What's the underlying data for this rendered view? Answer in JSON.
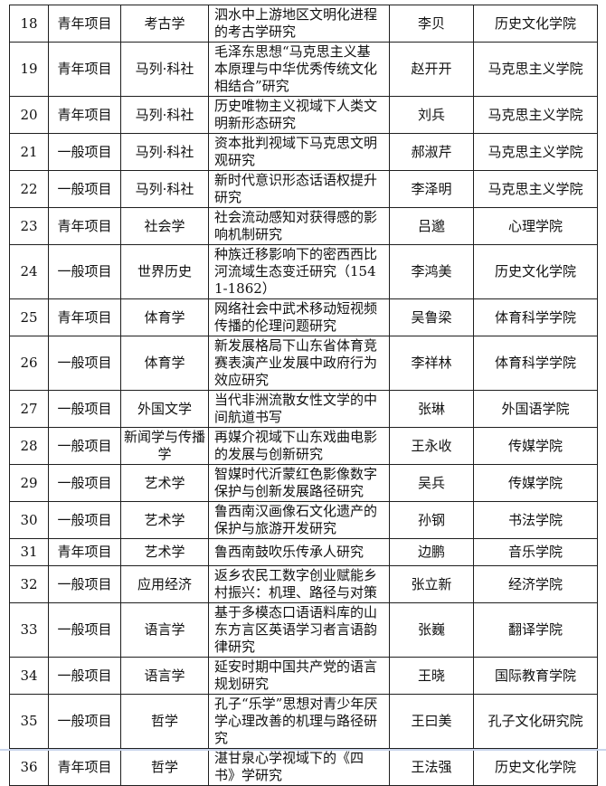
{
  "page": {
    "background_color": "#ffffff",
    "table_border_color": "#1f1f1f",
    "bottom_edge_color": "#c9d5ec"
  },
  "table": {
    "rows": [
      {
        "no": "18",
        "category": "青年项目",
        "discipline": "考古学",
        "title": "泗水中上游地区文明化进程的考古学研究",
        "leader": "李贝",
        "unit": "历史文化学院"
      },
      {
        "no": "19",
        "category": "青年项目",
        "discipline": "马列·科社",
        "title": "毛泽东思想“马克思主义基本原理与中华优秀传统文化相结合”研究",
        "leader": "赵开开",
        "unit": "马克思主义学院"
      },
      {
        "no": "20",
        "category": "青年项目",
        "discipline": "马列·科社",
        "title": "历史唯物主义视域下人类文明新形态研究",
        "leader": "刘兵",
        "unit": "马克思主义学院"
      },
      {
        "no": "21",
        "category": "一般项目",
        "discipline": "马列·科社",
        "title": "资本批判视域下马克思文明观研究",
        "leader": "郝淑芹",
        "unit": "马克思主义学院"
      },
      {
        "no": "22",
        "category": "一般项目",
        "discipline": "马列·科社",
        "title": "新时代意识形态话语权提升研究",
        "leader": "李泽明",
        "unit": "马克思主义学院"
      },
      {
        "no": "23",
        "category": "青年项目",
        "discipline": "社会学",
        "title": "社会流动感知对获得感的影响机制研究",
        "leader": "吕邈",
        "unit": "心理学院"
      },
      {
        "no": "24",
        "category": "一般项目",
        "discipline": "世界历史",
        "title": "种族迁移影响下的密西西比河流域生态变迁研究（1541-1862）",
        "leader": "李鸿美",
        "unit": "历史文化学院"
      },
      {
        "no": "25",
        "category": "青年项目",
        "discipline": "体育学",
        "title": "网络社会中武术移动短视频传播的伦理问题研究",
        "leader": "吴鲁梁",
        "unit": "体育科学学院"
      },
      {
        "no": "26",
        "category": "一般项目",
        "discipline": "体育学",
        "title": "新发展格局下山东省体育竞赛表演产业发展中政府行为效应研究",
        "leader": "李祥林",
        "unit": "体育科学学院"
      },
      {
        "no": "27",
        "category": "一般项目",
        "discipline": "外国文学",
        "title": "当代非洲流散女性文学的中间航道书写",
        "leader": "张琳",
        "unit": "外国语学院"
      },
      {
        "no": "28",
        "category": "一般项目",
        "discipline": "新闻学与传播学",
        "title": "再媒介视域下山东戏曲电影的发展与创新研究",
        "leader": "王永收",
        "unit": "传媒学院"
      },
      {
        "no": "29",
        "category": "一般项目",
        "discipline": "艺术学",
        "title": "智媒时代沂蒙红色影像数字保护与创新发展路径研究",
        "leader": "吴兵",
        "unit": "传媒学院"
      },
      {
        "no": "30",
        "category": "一般项目",
        "discipline": "艺术学",
        "title": "鲁西南汉画像石文化遗产的保护与旅游开发研究",
        "leader": "孙钢",
        "unit": "书法学院"
      },
      {
        "no": "31",
        "category": "青年项目",
        "discipline": "艺术学",
        "title": "鲁西南鼓吹乐传承人研究",
        "leader": "边鹏",
        "unit": "音乐学院"
      },
      {
        "no": "32",
        "category": "一般项目",
        "discipline": "应用经济",
        "title": "返乡农民工数字创业赋能乡村振兴：机理、路径与对策",
        "leader": "张立新",
        "unit": "经济学院"
      },
      {
        "no": "33",
        "category": "一般项目",
        "discipline": "语言学",
        "title": "基于多模态口语语料库的山东方言区英语学习者言语韵律研究",
        "leader": "张巍",
        "unit": "翻译学院"
      },
      {
        "no": "34",
        "category": "一般项目",
        "discipline": "语言学",
        "title": "延安时期中国共产党的语言规划研究",
        "leader": "王晓",
        "unit": "国际教育学院"
      },
      {
        "no": "35",
        "category": "一般项目",
        "discipline": "哲学",
        "title": "孔子“乐学”思想对青少年厌学心理改善的机理与路径研究",
        "leader": "王曰美",
        "unit": "孔子文化研究院"
      },
      {
        "no": "36",
        "category": "青年项目",
        "discipline": "哲学",
        "title": "湛甘泉心学视域下的《四书》学研究",
        "leader": "王法强",
        "unit": "历史文化学院"
      }
    ]
  }
}
